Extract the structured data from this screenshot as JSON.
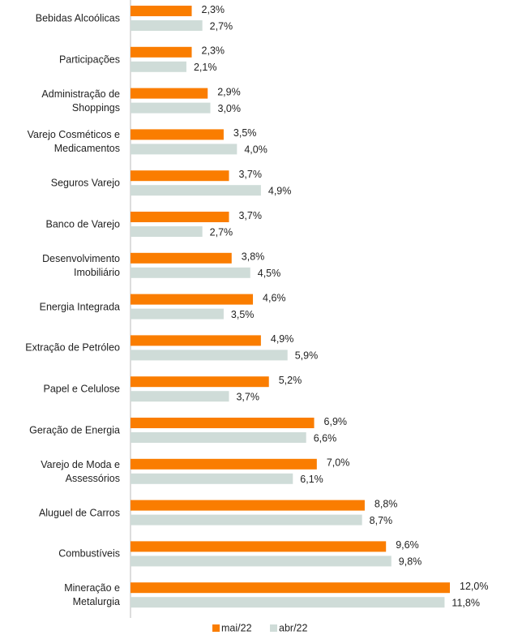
{
  "chart_data": {
    "type": "bar",
    "orientation": "horizontal",
    "categories": [
      "Bebidas Alcoólicas",
      "Participações",
      "Administração de\nShoppings",
      "Varejo Cosméticos e\nMedicamentos",
      "Seguros Varejo",
      "Banco de Varejo",
      "Desenvolvimento\nImobiliário",
      "Energia Integrada",
      "Extração de Petróleo",
      "Papel e Celulose",
      "Geração de Energia",
      "Varejo de Moda e\nAssessórios",
      "Aluguel de Carros",
      "Combustíveis",
      "Mineração e\nMetalurgia"
    ],
    "series": [
      {
        "name": "mai/22",
        "color": "#fa7d00",
        "values": [
          2.3,
          2.3,
          2.9,
          3.5,
          3.7,
          3.7,
          3.8,
          4.6,
          4.9,
          5.2,
          6.9,
          7.0,
          8.8,
          9.6,
          12.0
        ],
        "value_labels": [
          "2,3%",
          "2,3%",
          "2,9%",
          "3,5%",
          "3,7%",
          "3,7%",
          "3,8%",
          "4,6%",
          "4,9%",
          "5,2%",
          "6,9%",
          "7,0%",
          "8,8%",
          "9,6%",
          "12,0%"
        ]
      },
      {
        "name": "abr/22",
        "color": "#cfdcd8",
        "values": [
          2.7,
          2.1,
          3.0,
          4.0,
          4.9,
          2.7,
          4.5,
          3.5,
          5.9,
          3.7,
          6.6,
          6.1,
          8.7,
          9.8,
          11.8
        ],
        "value_labels": [
          "2,7%",
          "2,1%",
          "3,0%",
          "4,0%",
          "4,9%",
          "2,7%",
          "4,5%",
          "3,5%",
          "5,9%",
          "3,7%",
          "6,6%",
          "6,1%",
          "8,7%",
          "9,8%",
          "11,8%"
        ]
      }
    ],
    "legend": "bottom"
  }
}
